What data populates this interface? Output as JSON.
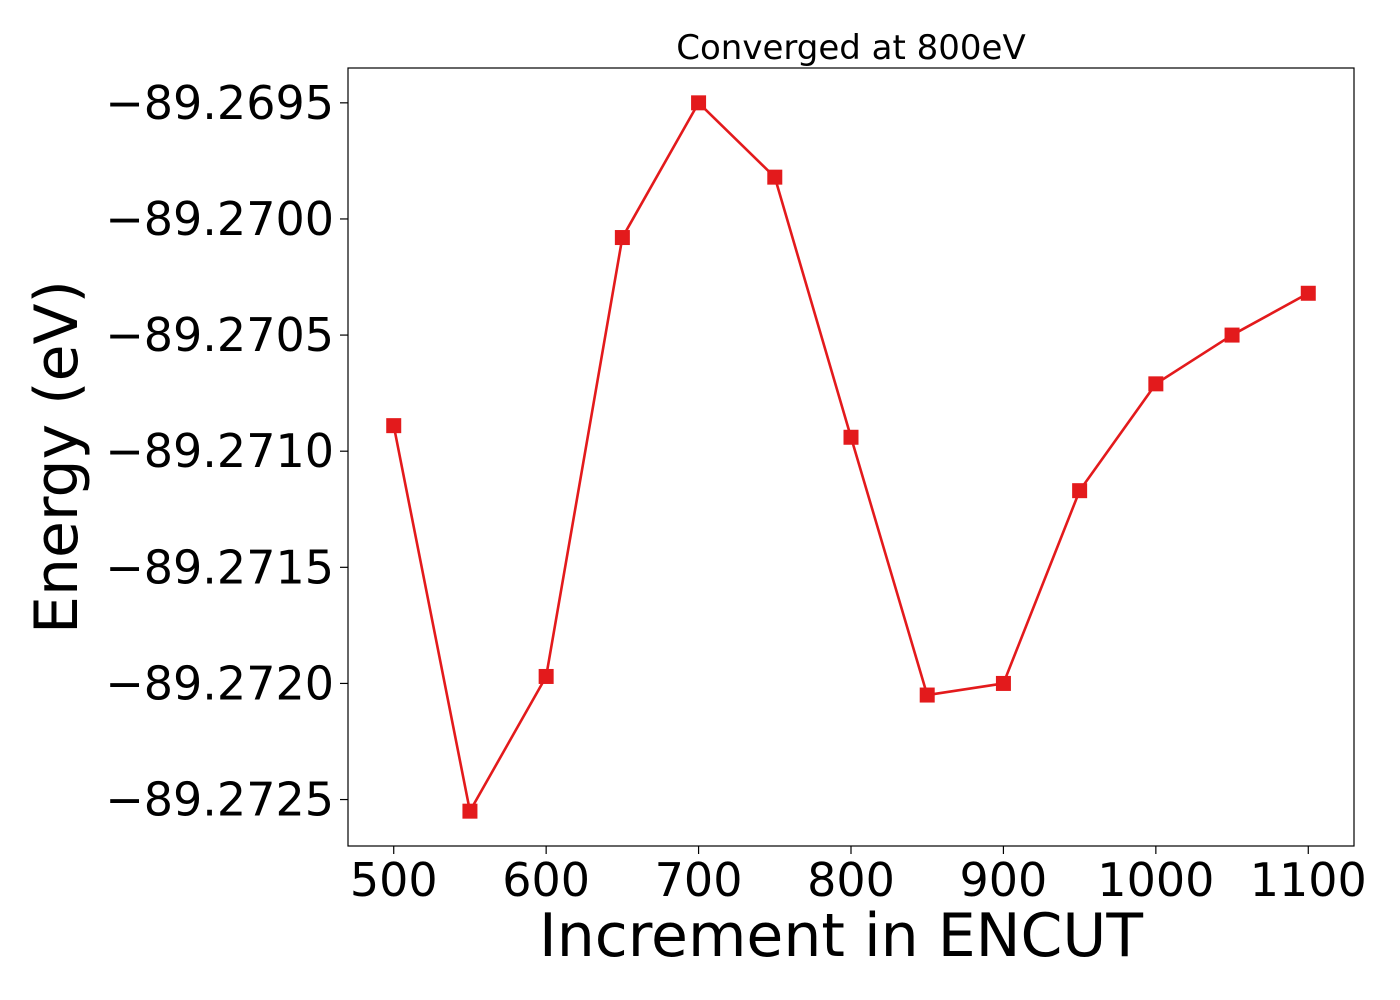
{
  "chart_data": {
    "type": "line",
    "title": "Converged at 800eV",
    "xlabel": "Increment in ENCUT",
    "ylabel": "Energy (eV)",
    "xlim": [
      470,
      1130
    ],
    "ylim": [
      -89.2727,
      -89.26935
    ],
    "x_ticks": [
      500,
      600,
      700,
      800,
      900,
      1000,
      1100
    ],
    "y_ticks": [
      -89.2725,
      -89.272,
      -89.2715,
      -89.271,
      -89.2705,
      -89.27,
      -89.2695
    ],
    "y_tick_labels": [
      "−89.2725",
      "−89.2720",
      "−89.2715",
      "−89.2710",
      "−89.2705",
      "−89.2700",
      "−89.2695"
    ],
    "grid": false,
    "marker": "square",
    "color": "#e31a1c",
    "series": [
      {
        "x": [
          500,
          550,
          600,
          650,
          700,
          750,
          800,
          850,
          900,
          950,
          1000,
          1050,
          1100
        ],
        "y": [
          -89.27089,
          -89.27255,
          -89.27197,
          -89.27008,
          -89.2695,
          -89.26982,
          -89.27094,
          -89.27205,
          -89.272,
          -89.27117,
          -89.27071,
          -89.2705,
          -89.27032
        ]
      }
    ]
  }
}
